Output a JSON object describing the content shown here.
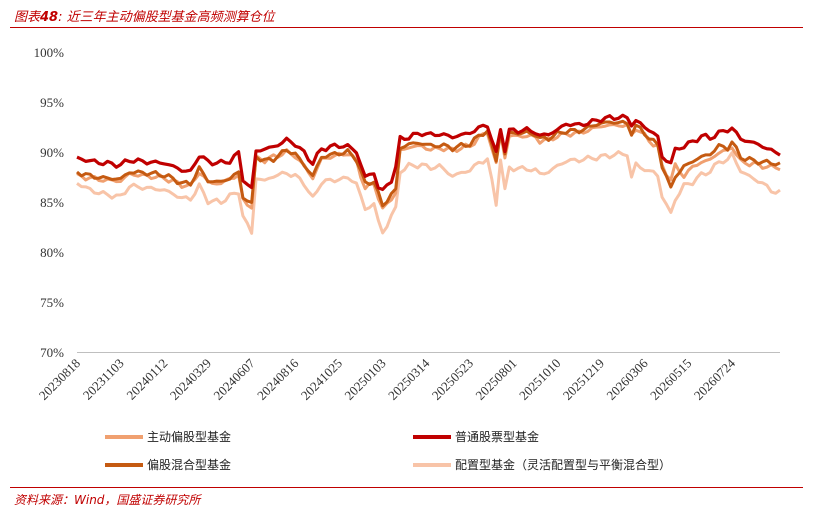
{
  "header": {
    "label": "图表",
    "num": "48",
    "text": ": 近三年主动偏股型基金高频测算仓位"
  },
  "footer": {
    "source": "资料来源：Wind，国盛证券研究所"
  },
  "colors": {
    "rule": "#c00000",
    "series": [
      "#f0a070",
      "#c00000",
      "#c55a11",
      "#f8c4a8"
    ]
  },
  "chart_data": {
    "type": "line",
    "x_ticks": [
      "20230818",
      "20231103",
      "20240112",
      "20240329",
      "20240607",
      "20240816",
      "20241025",
      "20250103",
      "20250314",
      "20250523",
      "20250801",
      "20251010",
      "20251219",
      "20260306",
      "20260515",
      "20260724"
    ],
    "y_ticks": [
      "70%",
      "75%",
      "80%",
      "85%",
      "90%",
      "95%",
      "100%"
    ],
    "ylim": [
      70,
      100
    ],
    "n_points": 162,
    "series": [
      {
        "name": "主动偏股型基金",
        "color": "#f0a070",
        "keys": [
          [
            0,
            87.6
          ],
          [
            3,
            87.4
          ],
          [
            6,
            87.2
          ],
          [
            10,
            87.1
          ],
          [
            12,
            87.8
          ],
          [
            16,
            87.6
          ],
          [
            20,
            87.4
          ],
          [
            24,
            86.7
          ],
          [
            26,
            86.6
          ],
          [
            28,
            88.0
          ],
          [
            30,
            87.0
          ],
          [
            33,
            86.8
          ],
          [
            35,
            87.4
          ],
          [
            37,
            87.6
          ],
          [
            38,
            85.2
          ],
          [
            40,
            84.5
          ],
          [
            41,
            89.4
          ],
          [
            43,
            89.2
          ],
          [
            45,
            89.5
          ],
          [
            48,
            90.0
          ],
          [
            50,
            89.6
          ],
          [
            52,
            88.6
          ],
          [
            54,
            87.4
          ],
          [
            56,
            89.3
          ],
          [
            59,
            89.6
          ],
          [
            62,
            89.9
          ],
          [
            64,
            89.1
          ],
          [
            66,
            86.3
          ],
          [
            68,
            86.9
          ],
          [
            69,
            85.5
          ],
          [
            70,
            84.2
          ],
          [
            72,
            85.4
          ],
          [
            73,
            85.9
          ],
          [
            74,
            90.1
          ],
          [
            76,
            90.5
          ],
          [
            79,
            90.6
          ],
          [
            81,
            90.2
          ],
          [
            83,
            90.4
          ],
          [
            86,
            90.2
          ],
          [
            90,
            90.6
          ],
          [
            92,
            91.4
          ],
          [
            94,
            92.0
          ],
          [
            96,
            88.8
          ],
          [
            97,
            91.9
          ],
          [
            98,
            89.5
          ],
          [
            99,
            91.6
          ],
          [
            103,
            91.6
          ],
          [
            105,
            91.5
          ],
          [
            106,
            91.1
          ],
          [
            108,
            91.2
          ],
          [
            110,
            91.6
          ],
          [
            112,
            91.8
          ],
          [
            115,
            91.9
          ],
          [
            118,
            92.3
          ],
          [
            120,
            92.6
          ],
          [
            124,
            92.7
          ],
          [
            126,
            92.6
          ],
          [
            127,
            91.7
          ],
          [
            128,
            92.4
          ],
          [
            130,
            91.6
          ],
          [
            132,
            90.8
          ],
          [
            133,
            90.5
          ],
          [
            134,
            88.6
          ],
          [
            136,
            87.2
          ],
          [
            137,
            88.6
          ],
          [
            139,
            87.6
          ],
          [
            141,
            88.5
          ],
          [
            143,
            89.0
          ],
          [
            145,
            89.2
          ],
          [
            147,
            90.0
          ],
          [
            149,
            90.1
          ],
          [
            150,
            90.6
          ],
          [
            152,
            89.0
          ],
          [
            155,
            88.8
          ],
          [
            157,
            88.6
          ],
          [
            159,
            88.5
          ],
          [
            161,
            88.4
          ]
        ]
      },
      {
        "name": "普通股票型基金",
        "color": "#c00000",
        "keys": [
          [
            0,
            89.4
          ],
          [
            3,
            89.1
          ],
          [
            6,
            88.9
          ],
          [
            10,
            88.7
          ],
          [
            12,
            89.2
          ],
          [
            16,
            89.0
          ],
          [
            20,
            88.9
          ],
          [
            24,
            88.2
          ],
          [
            26,
            88.0
          ],
          [
            28,
            89.7
          ],
          [
            30,
            89.0
          ],
          [
            33,
            88.9
          ],
          [
            35,
            89.1
          ],
          [
            37,
            89.9
          ],
          [
            38,
            87.3
          ],
          [
            40,
            86.3
          ],
          [
            41,
            90.1
          ],
          [
            43,
            90.3
          ],
          [
            45,
            90.5
          ],
          [
            48,
            91.2
          ],
          [
            50,
            90.8
          ],
          [
            52,
            89.9
          ],
          [
            54,
            88.9
          ],
          [
            56,
            90.3
          ],
          [
            59,
            90.6
          ],
          [
            62,
            90.6
          ],
          [
            64,
            90.0
          ],
          [
            66,
            87.5
          ],
          [
            68,
            87.9
          ],
          [
            69,
            86.5
          ],
          [
            70,
            86.1
          ],
          [
            72,
            87.2
          ],
          [
            73,
            88.5
          ],
          [
            74,
            91.3
          ],
          [
            76,
            91.5
          ],
          [
            79,
            91.9
          ],
          [
            81,
            91.7
          ],
          [
            83,
            91.8
          ],
          [
            86,
            91.5
          ],
          [
            90,
            91.9
          ],
          [
            92,
            92.4
          ],
          [
            94,
            92.7
          ],
          [
            96,
            89.8
          ],
          [
            97,
            92.3
          ],
          [
            98,
            90.3
          ],
          [
            99,
            92.1
          ],
          [
            103,
            92.2
          ],
          [
            105,
            92.0
          ],
          [
            106,
            91.6
          ],
          [
            108,
            91.8
          ],
          [
            110,
            92.2
          ],
          [
            112,
            92.8
          ],
          [
            115,
            92.7
          ],
          [
            118,
            93.0
          ],
          [
            120,
            93.3
          ],
          [
            124,
            93.5
          ],
          [
            126,
            93.4
          ],
          [
            127,
            92.8
          ],
          [
            128,
            93.1
          ],
          [
            130,
            92.5
          ],
          [
            132,
            91.9
          ],
          [
            133,
            91.5
          ],
          [
            134,
            89.5
          ],
          [
            136,
            88.9
          ],
          [
            137,
            90.2
          ],
          [
            139,
            90.6
          ],
          [
            141,
            91.0
          ],
          [
            143,
            91.6
          ],
          [
            145,
            91.4
          ],
          [
            147,
            91.9
          ],
          [
            149,
            92.2
          ],
          [
            150,
            92.4
          ],
          [
            152,
            91.3
          ],
          [
            155,
            90.9
          ],
          [
            157,
            90.6
          ],
          [
            159,
            90.1
          ],
          [
            161,
            89.9
          ]
        ]
      },
      {
        "name": "偏股混合型基金",
        "color": "#c55a11",
        "keys": [
          [
            0,
            88.0
          ],
          [
            3,
            87.6
          ],
          [
            6,
            87.4
          ],
          [
            10,
            87.3
          ],
          [
            12,
            88.0
          ],
          [
            16,
            87.9
          ],
          [
            20,
            87.7
          ],
          [
            24,
            86.9
          ],
          [
            26,
            86.8
          ],
          [
            28,
            88.4
          ],
          [
            30,
            87.1
          ],
          [
            33,
            87.0
          ],
          [
            35,
            87.4
          ],
          [
            37,
            87.9
          ],
          [
            38,
            85.6
          ],
          [
            40,
            84.7
          ],
          [
            41,
            89.6
          ],
          [
            43,
            89.1
          ],
          [
            45,
            89.3
          ],
          [
            48,
            90.2
          ],
          [
            50,
            89.8
          ],
          [
            52,
            88.7
          ],
          [
            54,
            87.6
          ],
          [
            56,
            89.5
          ],
          [
            59,
            89.8
          ],
          [
            62,
            90.0
          ],
          [
            64,
            89.3
          ],
          [
            66,
            86.8
          ],
          [
            68,
            87.1
          ],
          [
            69,
            85.8
          ],
          [
            70,
            84.6
          ],
          [
            72,
            85.8
          ],
          [
            73,
            86.2
          ],
          [
            74,
            90.4
          ],
          [
            76,
            90.8
          ],
          [
            79,
            90.9
          ],
          [
            81,
            90.6
          ],
          [
            83,
            90.7
          ],
          [
            86,
            90.4
          ],
          [
            90,
            90.8
          ],
          [
            92,
            91.6
          ],
          [
            94,
            92.1
          ],
          [
            96,
            89.1
          ],
          [
            97,
            92.1
          ],
          [
            98,
            89.8
          ],
          [
            99,
            91.9
          ],
          [
            103,
            91.9
          ],
          [
            105,
            91.8
          ],
          [
            106,
            91.3
          ],
          [
            108,
            91.4
          ],
          [
            110,
            91.8
          ],
          [
            112,
            92.1
          ],
          [
            115,
            92.1
          ],
          [
            118,
            92.6
          ],
          [
            120,
            92.9
          ],
          [
            124,
            93.0
          ],
          [
            126,
            92.8
          ],
          [
            127,
            91.9
          ],
          [
            128,
            92.6
          ],
          [
            130,
            91.9
          ],
          [
            132,
            91.0
          ],
          [
            133,
            90.7
          ],
          [
            134,
            88.7
          ],
          [
            136,
            86.3
          ],
          [
            137,
            87.6
          ],
          [
            139,
            88.5
          ],
          [
            141,
            89.1
          ],
          [
            143,
            89.5
          ],
          [
            145,
            89.8
          ],
          [
            147,
            90.6
          ],
          [
            149,
            90.4
          ],
          [
            150,
            91.0
          ],
          [
            152,
            89.5
          ],
          [
            155,
            89.1
          ],
          [
            157,
            89.0
          ],
          [
            159,
            88.9
          ],
          [
            161,
            88.8
          ]
        ]
      },
      {
        "name": "配置型基金（灵活配置型与平衡混合型）",
        "color": "#f8c4a8",
        "keys": [
          [
            0,
            86.9
          ],
          [
            3,
            86.2
          ],
          [
            6,
            85.8
          ],
          [
            10,
            85.5
          ],
          [
            12,
            86.6
          ],
          [
            16,
            86.4
          ],
          [
            20,
            86.2
          ],
          [
            24,
            85.4
          ],
          [
            26,
            85.3
          ],
          [
            28,
            86.6
          ],
          [
            30,
            85.1
          ],
          [
            33,
            85.0
          ],
          [
            35,
            85.6
          ],
          [
            37,
            86.0
          ],
          [
            38,
            83.6
          ],
          [
            40,
            81.9
          ],
          [
            41,
            87.4
          ],
          [
            43,
            87.1
          ],
          [
            45,
            87.6
          ],
          [
            48,
            87.9
          ],
          [
            50,
            87.6
          ],
          [
            52,
            86.9
          ],
          [
            54,
            85.3
          ],
          [
            56,
            87.0
          ],
          [
            59,
            87.2
          ],
          [
            62,
            87.4
          ],
          [
            64,
            86.9
          ],
          [
            66,
            84.2
          ],
          [
            68,
            84.9
          ],
          [
            69,
            83.0
          ],
          [
            70,
            81.9
          ],
          [
            72,
            83.6
          ],
          [
            73,
            84.3
          ],
          [
            74,
            88.1
          ],
          [
            76,
            88.6
          ],
          [
            79,
            88.7
          ],
          [
            81,
            88.4
          ],
          [
            83,
            88.6
          ],
          [
            86,
            87.6
          ],
          [
            90,
            88.2
          ],
          [
            92,
            88.9
          ],
          [
            94,
            89.3
          ],
          [
            96,
            84.8
          ],
          [
            97,
            89.4
          ],
          [
            98,
            86.1
          ],
          [
            99,
            88.4
          ],
          [
            103,
            88.3
          ],
          [
            105,
            88.2
          ],
          [
            106,
            87.8
          ],
          [
            108,
            88.0
          ],
          [
            110,
            88.6
          ],
          [
            112,
            89.1
          ],
          [
            115,
            89.2
          ],
          [
            118,
            89.4
          ],
          [
            120,
            89.5
          ],
          [
            124,
            89.8
          ],
          [
            126,
            89.8
          ],
          [
            127,
            87.4
          ],
          [
            128,
            88.8
          ],
          [
            130,
            88.2
          ],
          [
            132,
            88.0
          ],
          [
            133,
            87.6
          ],
          [
            134,
            85.6
          ],
          [
            136,
            83.8
          ],
          [
            137,
            85.3
          ],
          [
            139,
            86.6
          ],
          [
            141,
            87.0
          ],
          [
            143,
            87.7
          ],
          [
            145,
            88.1
          ],
          [
            147,
            89.0
          ],
          [
            149,
            89.2
          ],
          [
            150,
            89.8
          ],
          [
            152,
            88.1
          ],
          [
            155,
            87.3
          ],
          [
            157,
            86.9
          ],
          [
            159,
            86.1
          ],
          [
            161,
            86.0
          ]
        ]
      }
    ]
  }
}
